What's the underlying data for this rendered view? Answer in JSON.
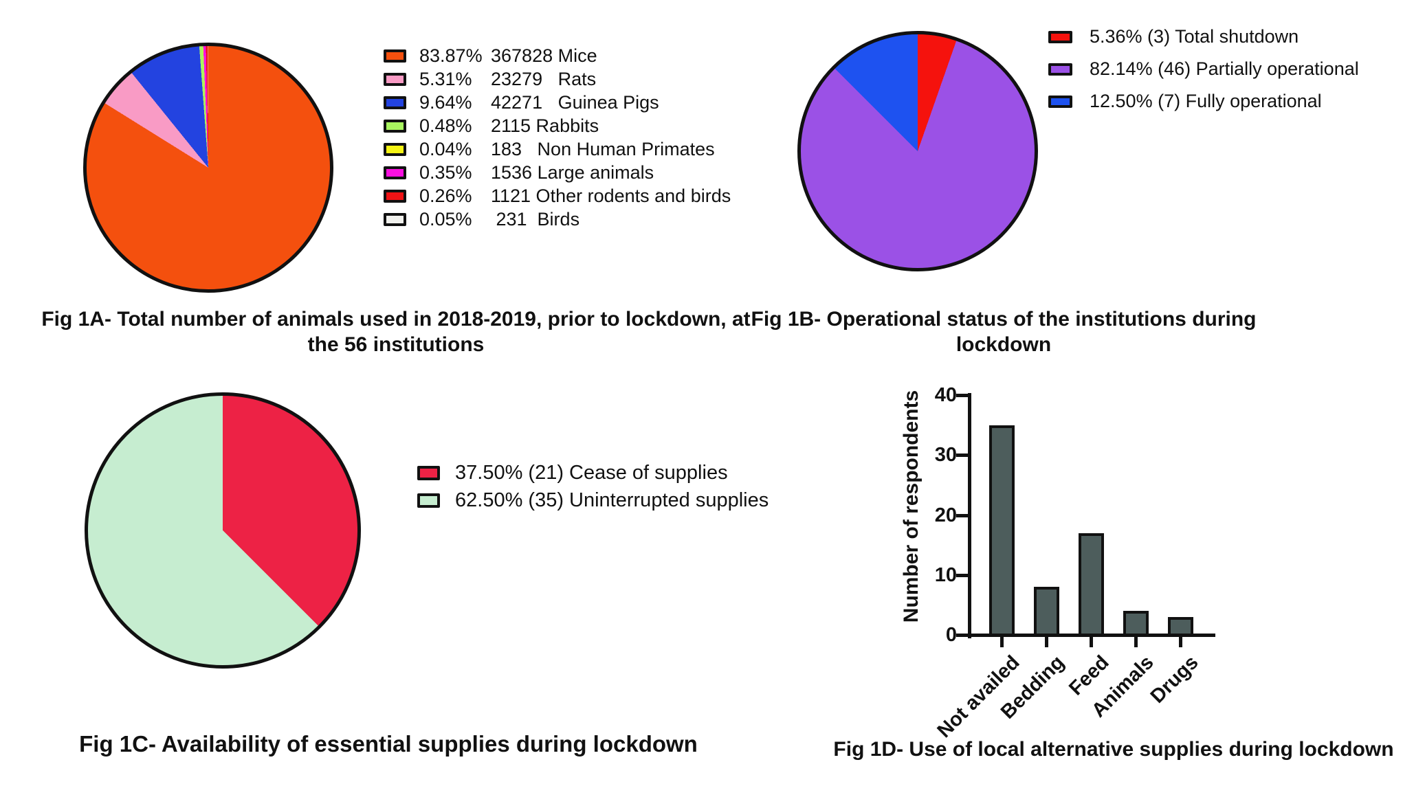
{
  "chart_data": [
    {
      "id": "fig1a",
      "type": "pie",
      "title_line1": "Fig 1A- Total number of animals used in 2018-2019, prior to lockdown, at",
      "title_line2": "the 56 institutions",
      "start_angle_deg": 0,
      "direction": "clockwise",
      "legend_position": "right",
      "slices": [
        {
          "label": "Mice",
          "count": 367828,
          "percent": 83.87,
          "color": "#F4500E",
          "legend_pct": "83.87%",
          "legend_rest": "367828 Mice"
        },
        {
          "label": "Rats",
          "count": 23279,
          "percent": 5.31,
          "color": "#F99BC5",
          "legend_pct": "5.31%",
          "legend_rest": "23279   Rats"
        },
        {
          "label": "Guinea Pigs",
          "count": 42271,
          "percent": 9.64,
          "color": "#2343E0",
          "legend_pct": "9.64%",
          "legend_rest": "42271   Guinea Pigs"
        },
        {
          "label": "Rabbits",
          "count": 2115,
          "percent": 0.48,
          "color": "#A9F55F",
          "legend_pct": "0.48%",
          "legend_rest": "2115 Rabbits"
        },
        {
          "label": "Non Human Primates",
          "count": 183,
          "percent": 0.04,
          "color": "#F5F415",
          "legend_pct": "0.04%",
          "legend_rest": "183   Non Human Primates"
        },
        {
          "label": "Large animals",
          "count": 1536,
          "percent": 0.35,
          "color": "#FA10E0",
          "legend_pct": "0.35%",
          "legend_rest": "1536 Large animals"
        },
        {
          "label": "Other rodents and birds",
          "count": 1121,
          "percent": 0.26,
          "color": "#EF1315",
          "legend_pct": "0.26%",
          "legend_rest": "1121 Other rodents and birds"
        },
        {
          "label": "Birds",
          "count": 231,
          "percent": 0.05,
          "color": "#F1F1ED",
          "legend_pct": "0.05%",
          "legend_rest": " 231  Birds"
        }
      ]
    },
    {
      "id": "fig1b",
      "type": "pie",
      "title_line1": "Fig 1B- Operational status of the institutions during",
      "title_line2": "lockdown",
      "start_angle_deg": 0,
      "direction": "clockwise",
      "legend_position": "right",
      "slices": [
        {
          "label": "Total shutdown",
          "count": 3,
          "percent": 5.36,
          "color": "#F5120D",
          "legend": "5.36% (3) Total shutdown"
        },
        {
          "label": "Partially operational",
          "count": 46,
          "percent": 82.14,
          "color": "#9B51E6",
          "legend": "82.14% (46) Partially operational"
        },
        {
          "label": "Fully operational",
          "count": 7,
          "percent": 12.5,
          "color": "#1E52F0",
          "legend": "12.50% (7) Fully operational"
        }
      ]
    },
    {
      "id": "fig1c",
      "type": "pie",
      "title": "Fig 1C- Availability of essential supplies during lockdown",
      "start_angle_deg": 0,
      "direction": "clockwise",
      "legend_position": "right",
      "slices": [
        {
          "label": "Cease of supplies",
          "count": 21,
          "percent": 37.5,
          "color": "#ED2245",
          "legend": "37.50% (21) Cease of supplies"
        },
        {
          "label": "Uninterrupted supplies",
          "count": 35,
          "percent": 62.5,
          "color": "#C6EDD0",
          "legend": "62.50% (35) Uninterrupted supplies"
        }
      ]
    },
    {
      "id": "fig1d",
      "type": "bar",
      "title": "Fig 1D- Use of local alternative supplies during lockdown",
      "ylabel": "Number of respondents",
      "categories": [
        "Not availed",
        "Bedding",
        "Feed",
        "Animals",
        "Drugs"
      ],
      "values": [
        35,
        8,
        17,
        4,
        3
      ],
      "ylim": [
        0,
        40
      ],
      "yticks": [
        0,
        10,
        20,
        30,
        40
      ],
      "bar_color": "#4D5D5C",
      "grid": false,
      "legend": "none"
    }
  ]
}
